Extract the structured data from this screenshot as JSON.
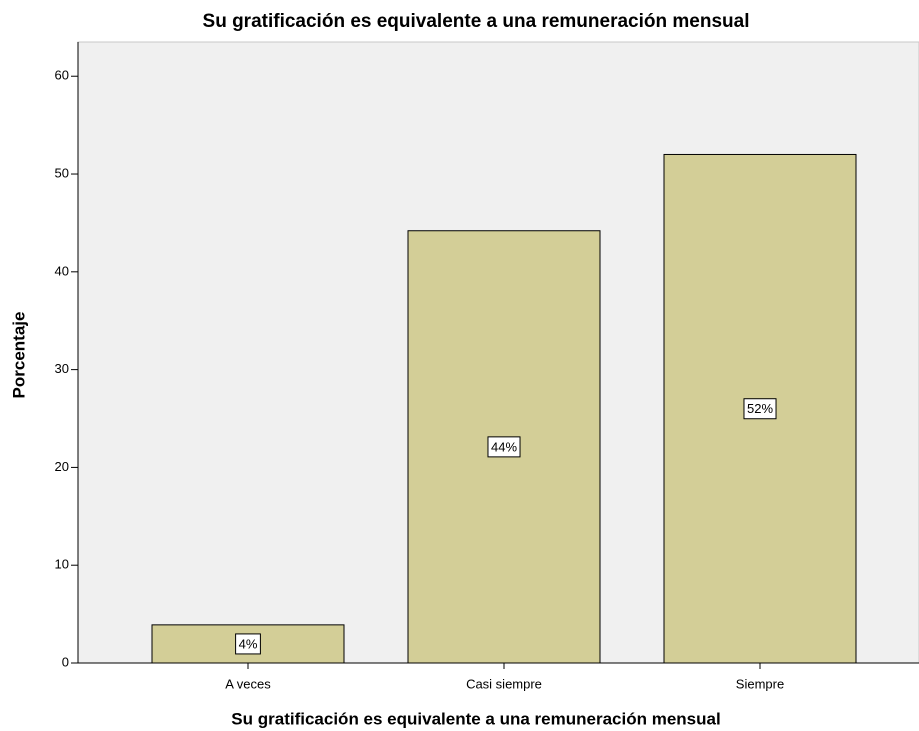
{
  "chart_data": {
    "type": "bar",
    "title": "Su gratificación es equivalente a una remuneración mensual",
    "x_label": "Su gratificación es equivalente a una remuneración mensual",
    "y_label": "Porcentaje",
    "categories": [
      "A veces",
      "Casi siempre",
      "Siempre"
    ],
    "values": [
      3.9,
      44.2,
      52.0
    ],
    "value_labels": [
      "4%",
      "44%",
      "52%"
    ],
    "color": "#d3ce97",
    "ylim": [
      0,
      63.5
    ],
    "yticks": [
      0,
      10,
      20,
      30,
      40,
      50,
      60
    ],
    "grid": false
  }
}
